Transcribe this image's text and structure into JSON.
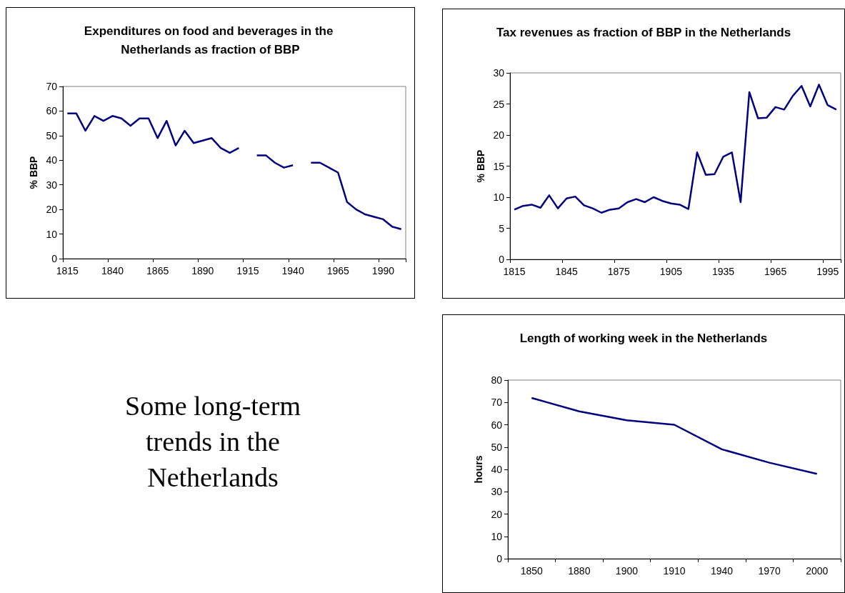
{
  "chart_data": [
    {
      "type": "line",
      "title": "Expenditures on food and beverages in the Netherlands as fraction of BBP",
      "ylabel": "% BBP",
      "categories": [
        "1815",
        null,
        null,
        null,
        null,
        "1840",
        null,
        null,
        null,
        null,
        "1865",
        null,
        null,
        null,
        null,
        "1890",
        null,
        null,
        null,
        null,
        "1915",
        null,
        null,
        null,
        null,
        "1940",
        null,
        null,
        null,
        null,
        "1965",
        null,
        null,
        null,
        null,
        "1990",
        null,
        null
      ],
      "values": [
        59,
        59,
        52,
        58,
        56,
        58,
        57,
        54,
        57,
        57,
        49,
        56,
        46,
        52,
        47,
        48,
        49,
        45,
        43,
        45,
        null,
        42,
        42,
        39,
        37,
        38,
        null,
        39,
        39,
        37,
        35,
        23,
        20,
        18,
        17,
        16,
        13,
        12
      ],
      "color": "#000080",
      "marker": "none",
      "ylim": [
        0,
        70
      ],
      "yticks": [
        0,
        10,
        20,
        30,
        40,
        50,
        60,
        70
      ]
    },
    {
      "type": "line",
      "title": "Tax revenues as fraction of BBP in the Netherlands",
      "ylabel": "% BBP",
      "categories": [
        "1815",
        null,
        null,
        null,
        null,
        null,
        "1845",
        null,
        null,
        null,
        null,
        null,
        "1875",
        null,
        null,
        null,
        null,
        null,
        "1905",
        null,
        null,
        null,
        null,
        null,
        "1935",
        null,
        null,
        null,
        null,
        null,
        "1965",
        null,
        null,
        null,
        null,
        null,
        "1995",
        null
      ],
      "values": [
        8.0,
        8.6,
        8.8,
        8.3,
        10.3,
        8.2,
        9.8,
        10.1,
        8.7,
        8.2,
        7.5,
        8.0,
        8.2,
        9.2,
        9.7,
        9.2,
        10.0,
        9.4,
        9.0,
        8.8,
        8.1,
        17.2,
        13.6,
        13.7,
        16.5,
        17.2,
        9.2,
        26.9,
        22.7,
        22.8,
        24.5,
        24.1,
        26.3,
        27.9,
        24.6,
        28.1,
        24.8,
        24.1
      ],
      "color": "#000080",
      "marker": "none",
      "ylim": [
        0,
        30
      ],
      "yticks": [
        0,
        5,
        10,
        15,
        20,
        25,
        30
      ]
    },
    {
      "type": "other",
      "title": "Some long-term trends in the Netherlands"
    },
    {
      "type": "line",
      "title": "Length of working week in the Netherlands",
      "ylabel": "hours",
      "categories": [
        "1850",
        "1880",
        "1900",
        "1910",
        "1940",
        "1970",
        "2000"
      ],
      "values": [
        72,
        66,
        62,
        60,
        49,
        43,
        38
      ],
      "color": "#000080",
      "marker": "none",
      "ylim": [
        0,
        80
      ],
      "yticks": [
        0,
        10,
        20,
        30,
        40,
        50,
        60,
        70,
        80
      ]
    }
  ]
}
